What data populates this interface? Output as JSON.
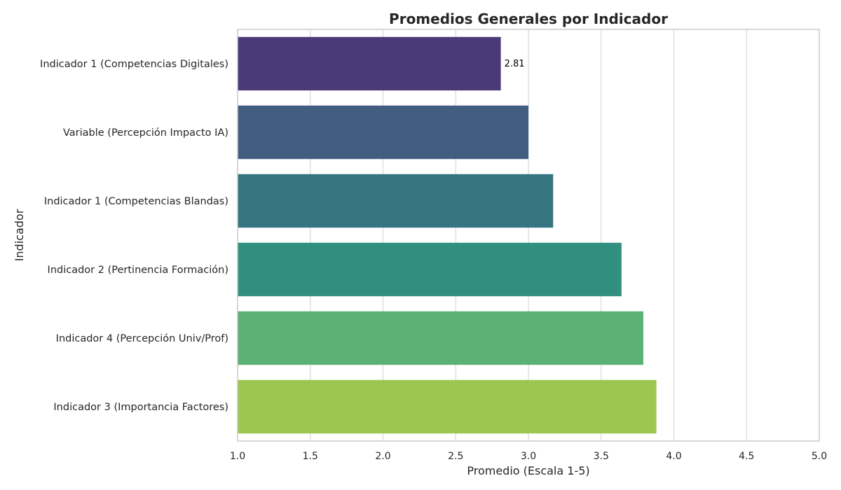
{
  "chart_data": {
    "type": "bar",
    "orientation": "horizontal",
    "title": "Promedios Generales por Indicador",
    "xlabel": "Promedio (Escala 1-5)",
    "ylabel": "Indicador",
    "xlim": [
      1.0,
      5.0
    ],
    "xticks": [
      "1.0",
      "1.5",
      "2.0",
      "2.5",
      "3.0",
      "3.5",
      "4.0",
      "4.5",
      "5.0"
    ],
    "grid": "vertical",
    "categories": [
      "Indicador 1 (Competencias Digitales)",
      "Variable (Percepción Impacto IA)",
      "Indicador 1 (Competencias Blandas)",
      "Indicador 2 (Pertinencia Formación)",
      "Indicador 4 (Percepción Univ/Prof)",
      "Indicador 3 (Importancia Factores)"
    ],
    "values": [
      2.81,
      3.0,
      3.17,
      3.64,
      3.79,
      3.88
    ],
    "colors": [
      "#4a3a78",
      "#415e81",
      "#357581",
      "#318f7f",
      "#5ab173",
      "#9bc64f"
    ],
    "data_labels": [
      {
        "index": 0,
        "text": "2.81"
      }
    ]
  }
}
